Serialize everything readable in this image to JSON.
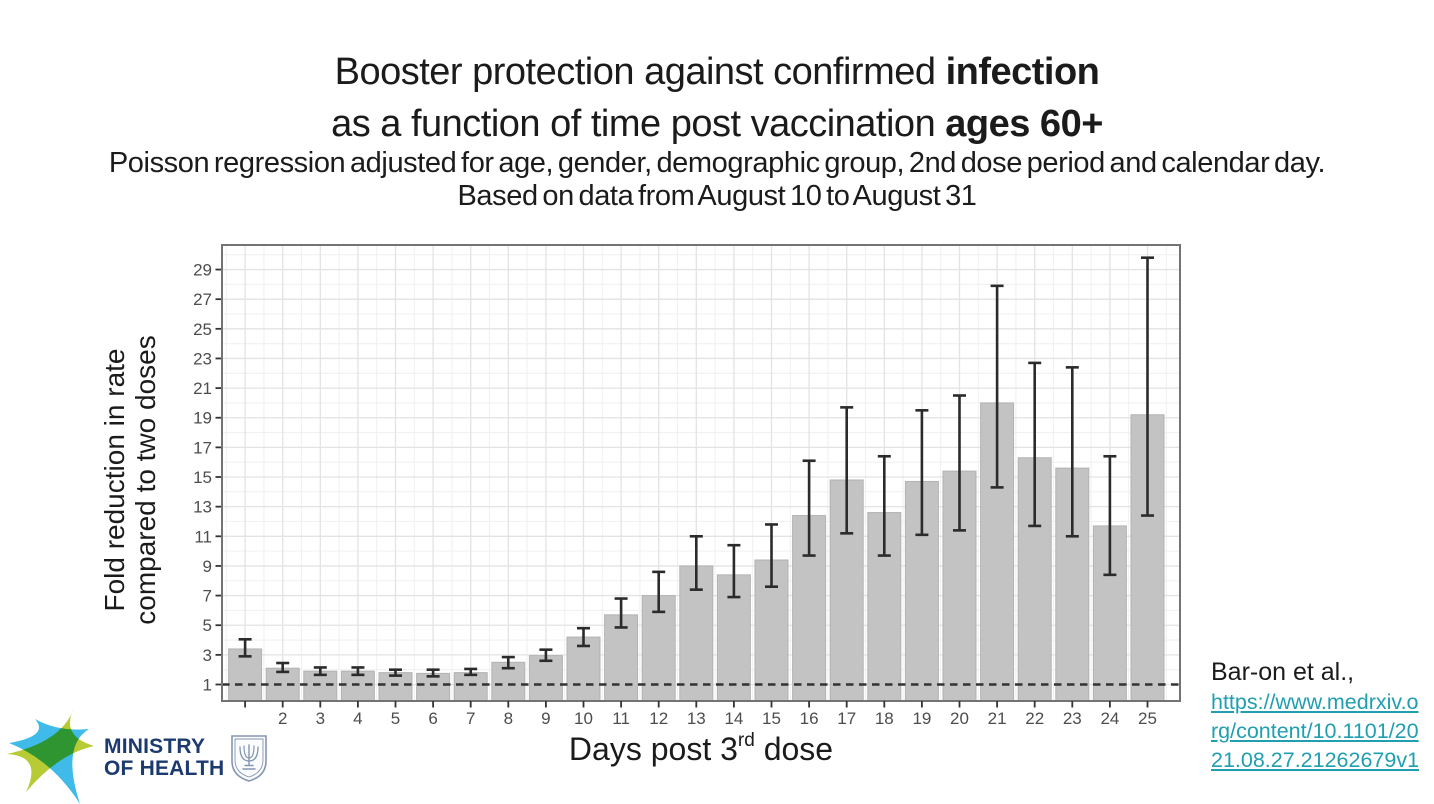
{
  "header": {
    "title_l1_regular": "Booster protection against confirmed ",
    "title_l1_bold": "infection",
    "title_l2_regular": "as a function of time post vaccination ",
    "title_l2_bold": "ages 60+",
    "subtitle_l1": "Poisson regression adjusted for age, gender, demographic group, 2nd dose period and calendar day.",
    "subtitle_l2": "Based on data from August 10 to August 31"
  },
  "chart_data": {
    "type": "bar",
    "title": "Booster protection against confirmed infection as a function of time post vaccination ages 60+",
    "xlabel": "Days post 3rd dose",
    "xlabel_parts": {
      "main": "Days post 3",
      "sup": "rd",
      "end": " dose"
    },
    "ylabel": "Fold reduction in rate compared to two doses",
    "ylabel_lines": [
      "Fold reduction in rate",
      "compared to two doses"
    ],
    "x": [
      1,
      2,
      3,
      4,
      5,
      6,
      7,
      8,
      9,
      10,
      11,
      12,
      13,
      14,
      15,
      16,
      17,
      18,
      19,
      20,
      21,
      22,
      23,
      24,
      25
    ],
    "x_tick_labels": [
      "",
      "2",
      "3",
      "4",
      "5",
      "6",
      "7",
      "8",
      "9",
      "10",
      "11",
      "12",
      "13",
      "14",
      "15",
      "16",
      "17",
      "18",
      "19",
      "20",
      "21",
      "22",
      "23",
      "24",
      "25"
    ],
    "values": [
      3.4,
      2.1,
      1.9,
      1.9,
      1.8,
      1.75,
      1.8,
      2.5,
      2.95,
      4.2,
      5.7,
      7.0,
      9.0,
      8.4,
      9.4,
      12.4,
      14.8,
      12.6,
      14.7,
      15.4,
      20.0,
      16.3,
      15.6,
      11.7,
      19.2
    ],
    "ci_low": [
      2.9,
      1.85,
      1.65,
      1.65,
      1.6,
      1.55,
      1.65,
      2.1,
      2.6,
      3.6,
      4.85,
      5.9,
      7.4,
      6.9,
      7.6,
      9.7,
      11.2,
      9.7,
      11.1,
      11.4,
      14.3,
      11.7,
      11.0,
      8.4,
      12.4
    ],
    "ci_high": [
      4.05,
      2.45,
      2.15,
      2.15,
      2.0,
      2.0,
      2.05,
      2.85,
      3.35,
      4.8,
      6.8,
      8.6,
      11.0,
      10.4,
      11.8,
      16.1,
      19.7,
      16.4,
      19.5,
      20.5,
      27.9,
      22.7,
      22.4,
      16.4,
      29.8
    ],
    "baseline": 1,
    "y_ticks": [
      1,
      3,
      5,
      7,
      9,
      11,
      13,
      15,
      17,
      19,
      21,
      23,
      25,
      27,
      29
    ],
    "ylim": [
      0,
      30.7
    ],
    "grid": true,
    "legend_position": "none"
  },
  "citation": {
    "author": "Bar-on et al.,",
    "link_lines": [
      "https://www.medrxiv.o",
      "rg/content/10.1101/20",
      "21.08.27.21262679v1"
    ]
  },
  "logo": {
    "line1": "MINISTRY",
    "line2": "OF HEALTH"
  },
  "colors": {
    "bar_fill": "#c3c3c3",
    "bar_edge": "#b2b2b2",
    "error_bar": "#2b2b2b",
    "dashed_baseline": "#333333",
    "grid_major": "#e3e3e3",
    "grid_minor": "#f1f1f1",
    "panel_border": "#737373",
    "tick": "#333333",
    "tick_label": "#4d4d4d",
    "title_text": "#1b1b1b",
    "link_teal": "#1f9fb0",
    "logo_navy": "#1c3a70",
    "logo_green": "#b6cb34",
    "logo_blue": "#2fb5e8",
    "emblem_blue_gray": "#8595b3"
  }
}
